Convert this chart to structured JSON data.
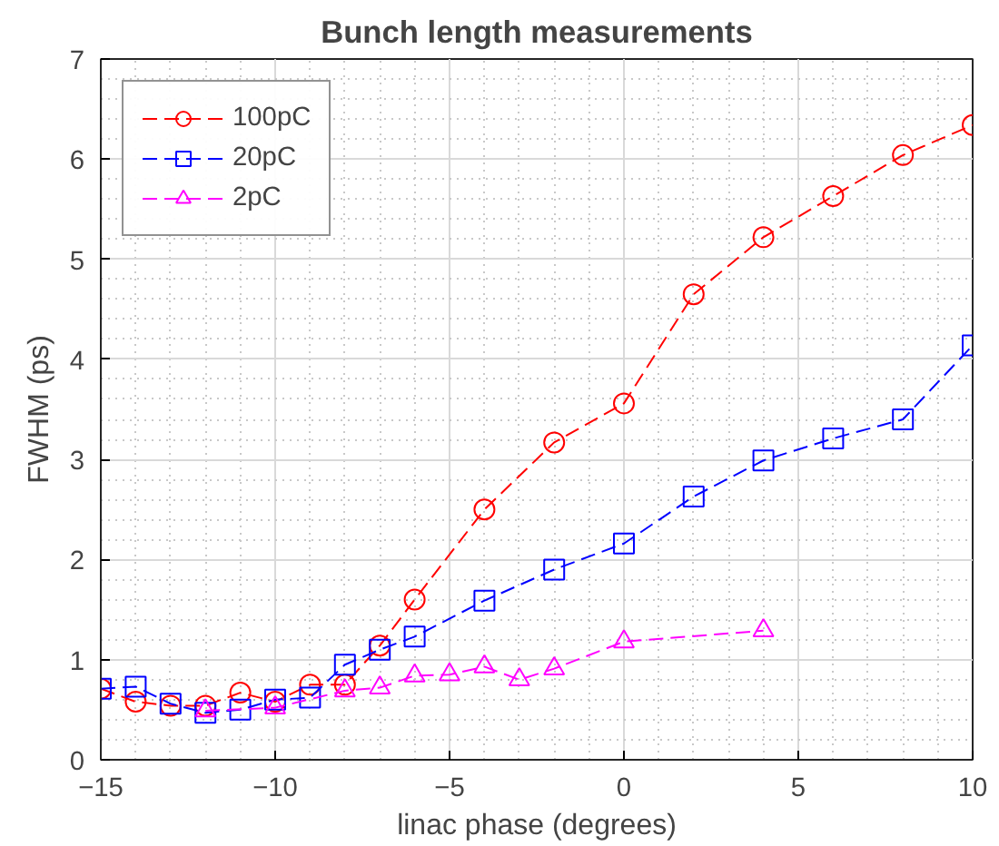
{
  "chart_data": {
    "type": "line",
    "title": "Bunch length measurements",
    "xlabel": "linac phase (degrees)",
    "ylabel": "FWHM (ps)",
    "xlim": [
      -15,
      10
    ],
    "ylim": [
      0,
      7
    ],
    "xticks": [
      -15,
      -10,
      -5,
      0,
      5,
      10
    ],
    "yticks": [
      0,
      1,
      2,
      3,
      4,
      5,
      6,
      7
    ],
    "grid": true,
    "legend": "top left",
    "line_style": "dashed",
    "series": [
      {
        "name": "100pC",
        "color": "#ff0000",
        "marker": "circle",
        "x": [
          -15,
          -14,
          -13,
          -12,
          -11,
          -10,
          -9,
          -8,
          -7,
          -6,
          -4,
          -2,
          0,
          2,
          4,
          6,
          8,
          10
        ],
        "values": [
          0.71,
          0.58,
          0.54,
          0.54,
          0.67,
          0.58,
          0.75,
          0.75,
          1.14,
          1.6,
          2.5,
          3.17,
          3.56,
          4.65,
          5.22,
          5.63,
          6.04,
          6.34
        ]
      },
      {
        "name": "20pC",
        "color": "#0000ff",
        "marker": "square",
        "x": [
          -15,
          -14,
          -13,
          -12,
          -11,
          -10,
          -9,
          -8,
          -7,
          -6,
          -4,
          -2,
          0,
          2,
          4,
          6,
          8,
          10
        ],
        "values": [
          0.71,
          0.73,
          0.56,
          0.47,
          0.5,
          0.6,
          0.62,
          0.95,
          1.1,
          1.23,
          1.59,
          1.9,
          2.16,
          2.63,
          2.99,
          3.21,
          3.4,
          4.14
        ]
      },
      {
        "name": "2pC",
        "color": "#ff00ff",
        "marker": "triangle",
        "x": [
          -12,
          -10,
          -8,
          -7,
          -6,
          -5,
          -4,
          -3,
          -2,
          0,
          4
        ],
        "values": [
          0.49,
          0.52,
          0.69,
          0.72,
          0.84,
          0.85,
          0.93,
          0.8,
          0.91,
          1.18,
          1.29
        ]
      }
    ]
  }
}
